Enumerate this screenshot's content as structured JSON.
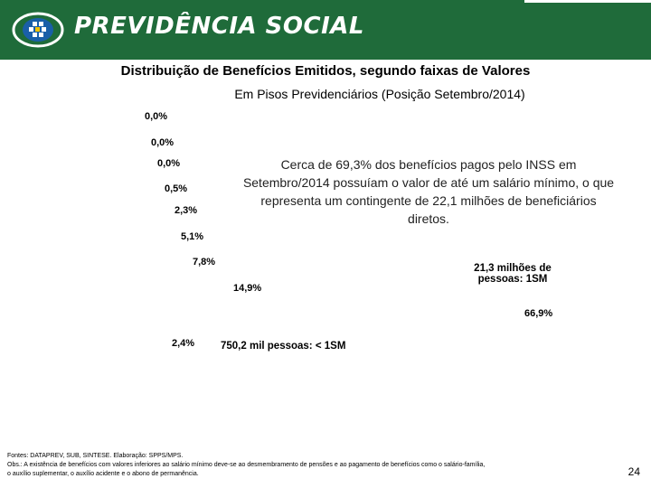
{
  "header": {
    "brand": "PREVIDÊNCIA SOCIAL",
    "bg_color": "#1f6b3a"
  },
  "chart_data": {
    "type": "pie",
    "title": "Distribuição de Benefícios Emitidos, segundo faixas de Valores",
    "subtitle": "Em Pisos Previdenciários (Posição Setembro/2014)",
    "labels": [
      "0,0%",
      "0,0%",
      "0,0%",
      "0,5%",
      "2,3%",
      "5,1%",
      "7,8%",
      "14,9%",
      "66,9%",
      "2,4%"
    ],
    "values": [
      0.0,
      0.0,
      0.0,
      0.5,
      2.3,
      5.1,
      7.8,
      14.9,
      66.9,
      2.4
    ],
    "annotations": {
      "one_sm": "21,3 milhões de pessoas: 1SM",
      "below_sm": "750,2  mil pessoas: < 1SM"
    },
    "note": "Cerca de 69,3% dos benefícios pagos pelo INSS em Setembro/2014 possuíam o valor de até um salário mínimo, o que representa um contingente de 22,1 milhões de beneficiários diretos."
  },
  "footer": {
    "sources": "Fontes: DATAPREV, SUB, SINTESE. Elaboração: SPPS/MPS.",
    "obs_line1": "Obs.: A existência de benefícios com valores inferiores ao salário mínimo deve-se ao desmembramento de pensões e ao pagamento de benefícios como o salário-família,",
    "obs_line2": "o auxílio suplementar, o auxílio acidente e o abono de permanência.",
    "page_number": "24"
  }
}
